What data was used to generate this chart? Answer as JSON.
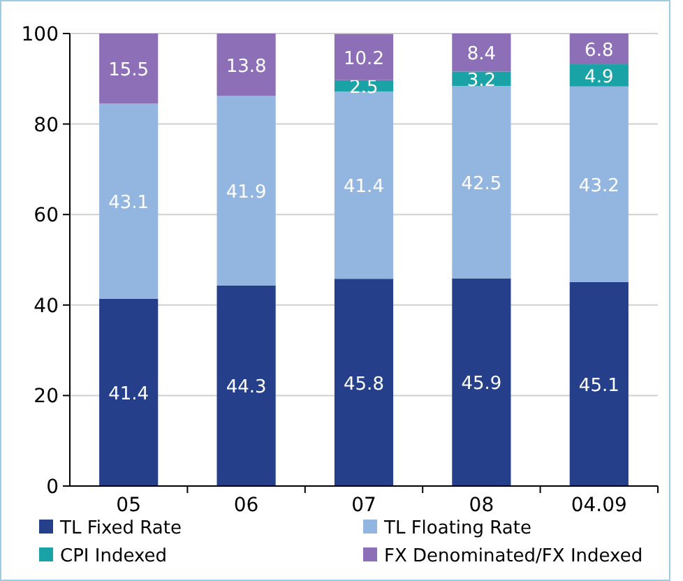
{
  "chart_data": {
    "type": "bar",
    "stacked": true,
    "categories": [
      "05",
      "06",
      "07",
      "08",
      "04.09"
    ],
    "series": [
      {
        "name": "TL Fixed Rate",
        "color": "#253f8a",
        "values": [
          41.4,
          44.3,
          45.8,
          45.9,
          45.1
        ]
      },
      {
        "name": "TL Floating Rate",
        "color": "#93b6e0",
        "values": [
          43.1,
          41.9,
          41.4,
          42.5,
          43.2
        ]
      },
      {
        "name": "CPI Indexed",
        "color": "#1aa3a6",
        "values": [
          null,
          null,
          2.5,
          3.2,
          4.9
        ]
      },
      {
        "name": "FX Denominated/FX Indexed",
        "color": "#8d6fb8",
        "values": [
          15.5,
          13.8,
          10.2,
          8.4,
          6.8
        ]
      }
    ],
    "ylim": [
      0,
      100
    ],
    "yticks": [
      0,
      20,
      40,
      60,
      80,
      100
    ],
    "grid": "y",
    "data_labels": true,
    "legend": "bottom"
  }
}
